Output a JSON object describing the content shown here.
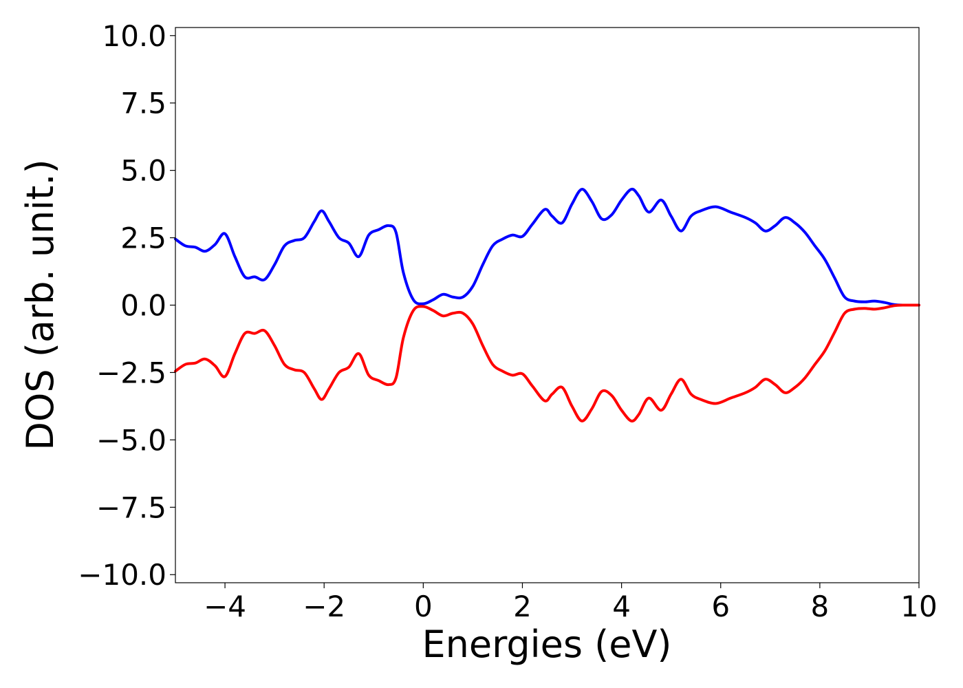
{
  "chart_data": {
    "type": "line",
    "title": "",
    "xlabel": "Energies (eV)",
    "ylabel": "DOS (arb. unit.)",
    "xlim": [
      -5,
      10
    ],
    "ylim": [
      -10.3,
      10.3
    ],
    "xticks": [
      -4,
      -2,
      0,
      2,
      4,
      6,
      8,
      10
    ],
    "xtick_labels": [
      "−4",
      "−2",
      "0",
      "2",
      "4",
      "6",
      "8",
      "10"
    ],
    "yticks": [
      10.0,
      7.5,
      5.0,
      2.5,
      0.0,
      -2.5,
      -5.0,
      -7.5,
      -10.0
    ],
    "ytick_labels": [
      "10.0",
      "7.5",
      "5.0",
      "2.5",
      "0.0",
      "−2.5",
      "−5.0",
      "−7.5",
      "−10.0"
    ],
    "grid": false,
    "legend": "none",
    "series": [
      {
        "color": "#0000ff",
        "x": [
          -5.0,
          -4.8,
          -4.6,
          -4.4,
          -4.2,
          -4.0,
          -3.8,
          -3.6,
          -3.4,
          -3.2,
          -3.0,
          -2.8,
          -2.6,
          -2.4,
          -2.2,
          -2.05,
          -1.9,
          -1.7,
          -1.5,
          -1.3,
          -1.1,
          -0.9,
          -0.7,
          -0.55,
          -0.4,
          -0.2,
          0.0,
          0.2,
          0.4,
          0.6,
          0.8,
          1.0,
          1.2,
          1.4,
          1.6,
          1.8,
          2.0,
          2.2,
          2.45,
          2.6,
          2.8,
          3.0,
          3.2,
          3.4,
          3.6,
          3.8,
          4.0,
          4.2,
          4.35,
          4.55,
          4.8,
          5.0,
          5.2,
          5.4,
          5.6,
          5.9,
          6.2,
          6.5,
          6.7,
          6.9,
          7.1,
          7.3,
          7.5,
          7.7,
          7.9,
          8.1,
          8.3,
          8.5,
          8.7,
          8.9,
          9.1,
          9.3,
          9.5,
          9.7,
          10.0
        ],
        "values": [
          2.45,
          2.2,
          2.15,
          2.0,
          2.25,
          2.65,
          1.8,
          1.05,
          1.05,
          0.95,
          1.5,
          2.2,
          2.4,
          2.5,
          3.1,
          3.5,
          3.1,
          2.5,
          2.3,
          1.8,
          2.6,
          2.8,
          2.95,
          2.7,
          1.2,
          0.2,
          0.05,
          0.2,
          0.4,
          0.3,
          0.3,
          0.7,
          1.5,
          2.2,
          2.45,
          2.6,
          2.55,
          3.0,
          3.55,
          3.3,
          3.05,
          3.75,
          4.3,
          3.85,
          3.2,
          3.35,
          3.9,
          4.3,
          4.05,
          3.45,
          3.9,
          3.3,
          2.75,
          3.3,
          3.5,
          3.65,
          3.45,
          3.25,
          3.05,
          2.75,
          2.95,
          3.25,
          3.05,
          2.7,
          2.2,
          1.7,
          1.0,
          0.3,
          0.15,
          0.12,
          0.15,
          0.1,
          0.02,
          0.0,
          0.0
        ]
      },
      {
        "color": "#ff0000",
        "x": [
          -5.0,
          -4.8,
          -4.6,
          -4.4,
          -4.2,
          -4.0,
          -3.8,
          -3.6,
          -3.4,
          -3.2,
          -3.0,
          -2.8,
          -2.6,
          -2.4,
          -2.2,
          -2.05,
          -1.9,
          -1.7,
          -1.5,
          -1.3,
          -1.1,
          -0.9,
          -0.7,
          -0.55,
          -0.4,
          -0.2,
          0.0,
          0.2,
          0.4,
          0.6,
          0.8,
          1.0,
          1.2,
          1.4,
          1.6,
          1.8,
          2.0,
          2.2,
          2.45,
          2.6,
          2.8,
          3.0,
          3.2,
          3.4,
          3.6,
          3.8,
          4.0,
          4.2,
          4.35,
          4.55,
          4.8,
          5.0,
          5.2,
          5.4,
          5.6,
          5.9,
          6.2,
          6.5,
          6.7,
          6.9,
          7.1,
          7.3,
          7.5,
          7.7,
          7.9,
          8.1,
          8.3,
          8.5,
          8.7,
          8.9,
          9.1,
          9.3,
          9.5,
          9.7,
          10.0
        ],
        "values": [
          -2.45,
          -2.2,
          -2.15,
          -2.0,
          -2.25,
          -2.65,
          -1.8,
          -1.05,
          -1.05,
          -0.95,
          -1.5,
          -2.2,
          -2.4,
          -2.5,
          -3.1,
          -3.5,
          -3.1,
          -2.5,
          -2.3,
          -1.8,
          -2.6,
          -2.8,
          -2.95,
          -2.7,
          -1.2,
          -0.2,
          -0.05,
          -0.2,
          -0.4,
          -0.3,
          -0.3,
          -0.7,
          -1.5,
          -2.2,
          -2.45,
          -2.6,
          -2.55,
          -3.0,
          -3.55,
          -3.3,
          -3.05,
          -3.75,
          -4.3,
          -3.85,
          -3.2,
          -3.35,
          -3.9,
          -4.3,
          -4.05,
          -3.45,
          -3.9,
          -3.3,
          -2.75,
          -3.3,
          -3.5,
          -3.65,
          -3.45,
          -3.25,
          -3.05,
          -2.75,
          -2.95,
          -3.25,
          -3.05,
          -2.7,
          -2.2,
          -1.7,
          -1.0,
          -0.3,
          -0.15,
          -0.12,
          -0.15,
          -0.1,
          -0.02,
          0.0,
          0.0
        ]
      }
    ]
  }
}
